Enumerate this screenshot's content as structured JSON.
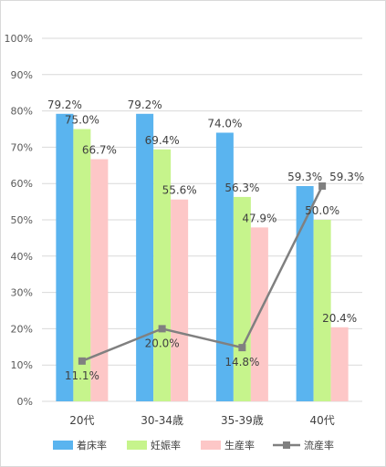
{
  "chart_data": {
    "type": "bar",
    "categories": [
      "20代",
      "30-34歳",
      "35-39歳",
      "40代"
    ],
    "series": [
      {
        "name": "着床率",
        "kind": "bar",
        "color": "#5ab4ef",
        "values": [
          79.2,
          79.2,
          74.0,
          59.3
        ],
        "labels": [
          "79.2%",
          "79.2%",
          "74.0%",
          "59.3%"
        ]
      },
      {
        "name": "妊娠率",
        "kind": "bar",
        "color": "#c6f48c",
        "values": [
          75.0,
          69.4,
          56.3,
          50.0
        ],
        "labels": [
          "75.0%",
          "69.4%",
          "56.3%",
          "50.0%"
        ]
      },
      {
        "name": "生産率",
        "kind": "bar",
        "color": "#fdc7c7",
        "values": [
          66.7,
          55.6,
          47.9,
          20.4
        ],
        "labels": [
          "66.7%",
          "55.6%",
          "47.9%",
          "20.4%"
        ]
      },
      {
        "name": "流産率",
        "kind": "line",
        "color": "#808080",
        "values": [
          11.1,
          20.0,
          14.8,
          59.3
        ],
        "labels": [
          "11.1%",
          "20.0%",
          "14.8%",
          "59.3%"
        ]
      }
    ],
    "y_ticks": [
      "0%",
      "10%",
      "20%",
      "30%",
      "40%",
      "50%",
      "60%",
      "70%",
      "80%",
      "90%",
      "100%"
    ],
    "ylim": [
      0,
      100
    ],
    "grid": true,
    "legend_position": "bottom"
  }
}
